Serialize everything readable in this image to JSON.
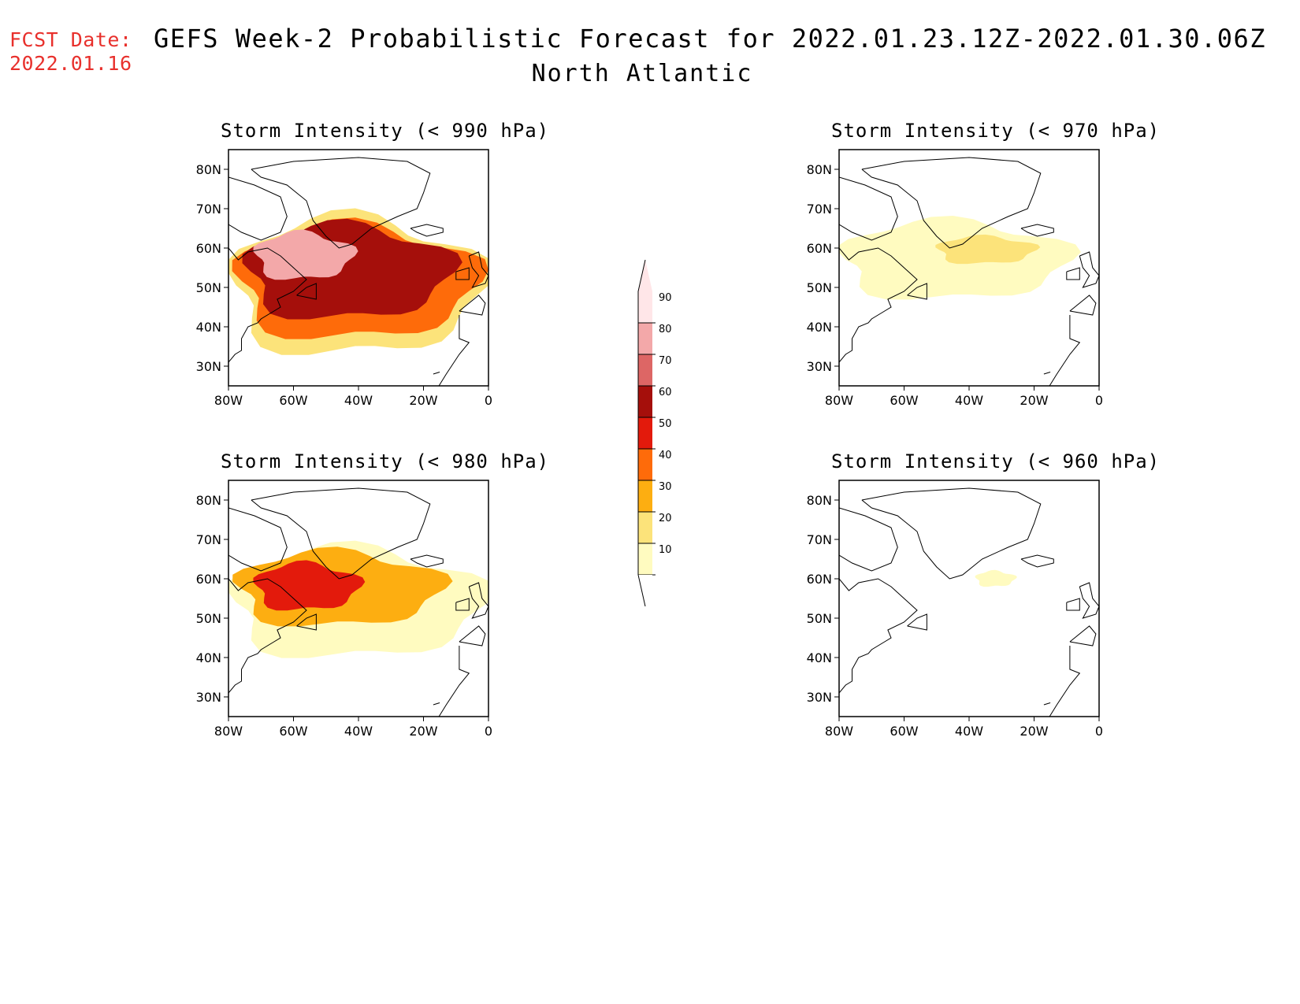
{
  "header": {
    "fcst_label": "FCST Date:",
    "fcst_date": "2022.01.16",
    "title": "GEFS Week-2 Probabilistic Forecast for 2022.01.23.12Z-2022.01.30.06Z",
    "subtitle": "North Atlantic"
  },
  "axes": {
    "lat_ticks": [
      "80N",
      "70N",
      "60N",
      "50N",
      "40N",
      "30N"
    ],
    "lon_ticks": [
      "80W",
      "60W",
      "40W",
      "20W",
      "0"
    ],
    "lat_range": [
      25,
      85
    ],
    "lon_range": [
      -80,
      0
    ]
  },
  "panels": [
    {
      "id": "p990",
      "title": "Storm Intensity (< 990 hPa)",
      "blobs": [
        {
          "level": 20,
          "lat": [
            33,
            68
          ],
          "lon": [
            -80,
            -2
          ]
        },
        {
          "level": 40,
          "lat": [
            37,
            66
          ],
          "lon": [
            -78,
            -4
          ]
        },
        {
          "level": 60,
          "lat": [
            42,
            66
          ],
          "lon": [
            -75,
            -12
          ]
        },
        {
          "level": 80,
          "lat": [
            52,
            64
          ],
          "lon": [
            -72,
            -42
          ]
        }
      ]
    },
    {
      "id": "p970",
      "title": "Storm Intensity (< 970 hPa)",
      "blobs": [
        {
          "level": 10,
          "lat": [
            47,
            67
          ],
          "lon": [
            -80,
            -10
          ]
        },
        {
          "level": 20,
          "lat": [
            56,
            63
          ],
          "lon": [
            -50,
            -20
          ]
        }
      ]
    },
    {
      "id": "p980",
      "title": "Storm Intensity (< 980 hPa)",
      "blobs": [
        {
          "level": 10,
          "lat": [
            40,
            68
          ],
          "lon": [
            -80,
            -2
          ]
        },
        {
          "level": 30,
          "lat": [
            48,
            67
          ],
          "lon": [
            -78,
            -15
          ]
        },
        {
          "level": 50,
          "lat": [
            52,
            64
          ],
          "lon": [
            -72,
            -40
          ]
        }
      ]
    },
    {
      "id": "p960",
      "title": "Storm Intensity (< 960 hPa)",
      "blobs": [
        {
          "level": 10,
          "lat": [
            58,
            62
          ],
          "lon": [
            -38,
            -26
          ]
        }
      ]
    }
  ],
  "colorbar": {
    "levels": [
      "10",
      "20",
      "30",
      "40",
      "50",
      "60",
      "70",
      "80",
      "90"
    ],
    "colors": [
      "#fffbc0",
      "#fce37a",
      "#fdae11",
      "#fe6b0a",
      "#e31a0c",
      "#a50f0b",
      "#dd6665",
      "#f3a8a9",
      "#ffe6e8"
    ]
  }
}
